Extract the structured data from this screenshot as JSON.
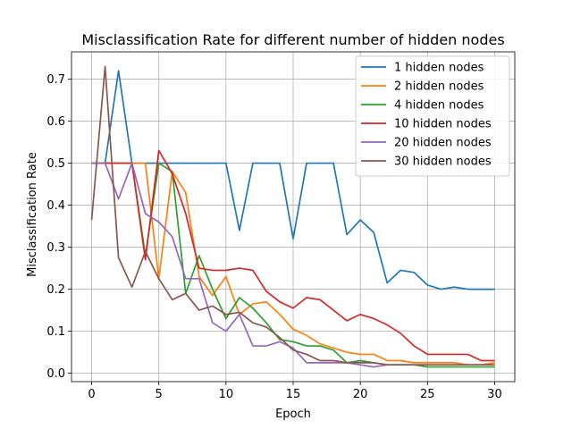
{
  "chart_data": {
    "type": "line",
    "title": "Misclassification Rate for different number of hidden nodes",
    "xlabel": "Epoch",
    "ylabel": "Misclassification Rate",
    "xlim": [
      -1.5,
      31.5
    ],
    "ylim": [
      -0.02,
      0.765
    ],
    "xticks": [
      0,
      5,
      10,
      15,
      20,
      25,
      30
    ],
    "yticks": [
      0.0,
      0.1,
      0.2,
      0.3,
      0.4,
      0.5,
      0.6,
      0.7
    ],
    "ytick_labels": [
      "0.0",
      "0.1",
      "0.2",
      "0.3",
      "0.4",
      "0.5",
      "0.6",
      "0.7"
    ],
    "grid": true,
    "legend_position": "top-right",
    "x": [
      0,
      1,
      2,
      3,
      4,
      5,
      6,
      7,
      8,
      9,
      10,
      11,
      12,
      13,
      14,
      15,
      16,
      17,
      18,
      19,
      20,
      21,
      22,
      23,
      24,
      25,
      26,
      27,
      28,
      29,
      30
    ],
    "series": [
      {
        "name": "1 hidden nodes",
        "color": "#1f77b4",
        "values": [
          0.5,
          0.5,
          0.72,
          0.5,
          0.5,
          0.5,
          0.5,
          0.5,
          0.5,
          0.5,
          0.5,
          0.34,
          0.5,
          0.5,
          0.5,
          0.32,
          0.5,
          0.5,
          0.5,
          0.33,
          0.365,
          0.335,
          0.215,
          0.245,
          0.24,
          0.21,
          0.2,
          0.205,
          0.2,
          0.2,
          0.2
        ]
      },
      {
        "name": "2 hidden nodes",
        "color": "#ff7f0e",
        "values": [
          0.5,
          0.5,
          0.5,
          0.5,
          0.5,
          0.225,
          0.48,
          0.43,
          0.23,
          0.185,
          0.23,
          0.14,
          0.165,
          0.17,
          0.14,
          0.105,
          0.09,
          0.07,
          0.06,
          0.05,
          0.045,
          0.045,
          0.03,
          0.03,
          0.025,
          0.025,
          0.025,
          0.025,
          0.02,
          0.02,
          0.025
        ]
      },
      {
        "name": "4 hidden nodes",
        "color": "#2ca02c",
        "values": [
          0.5,
          0.5,
          0.5,
          0.5,
          0.28,
          0.5,
          0.48,
          0.19,
          0.28,
          0.2,
          0.13,
          0.18,
          0.155,
          0.12,
          0.08,
          0.075,
          0.065,
          0.065,
          0.055,
          0.025,
          0.03,
          0.025,
          0.02,
          0.02,
          0.02,
          0.015,
          0.015,
          0.015,
          0.015,
          0.015,
          0.015
        ]
      },
      {
        "name": "10 hidden nodes",
        "color": "#d62728",
        "values": [
          0.5,
          0.5,
          0.5,
          0.5,
          0.27,
          0.53,
          0.475,
          0.38,
          0.25,
          0.245,
          0.245,
          0.25,
          0.245,
          0.195,
          0.17,
          0.155,
          0.18,
          0.175,
          0.15,
          0.125,
          0.14,
          0.13,
          0.115,
          0.095,
          0.065,
          0.045,
          0.045,
          0.045,
          0.045,
          0.03,
          0.03
        ]
      },
      {
        "name": "20 hidden nodes",
        "color": "#9467bd",
        "values": [
          0.5,
          0.5,
          0.415,
          0.5,
          0.38,
          0.36,
          0.325,
          0.225,
          0.225,
          0.12,
          0.1,
          0.14,
          0.065,
          0.065,
          0.075,
          0.06,
          0.025,
          0.025,
          0.025,
          0.025,
          0.02,
          0.015,
          0.02,
          0.02,
          0.02,
          0.02,
          0.02,
          0.02,
          0.02,
          0.02,
          0.02
        ]
      },
      {
        "name": "30 hidden nodes",
        "color": "#8c564b",
        "values": [
          0.365,
          0.73,
          0.275,
          0.205,
          0.29,
          0.225,
          0.175,
          0.19,
          0.15,
          0.16,
          0.14,
          0.145,
          0.12,
          0.11,
          0.085,
          0.055,
          0.045,
          0.03,
          0.03,
          0.025,
          0.025,
          0.025,
          0.02,
          0.02,
          0.02,
          0.02,
          0.02,
          0.02,
          0.02,
          0.02,
          0.02
        ]
      }
    ]
  }
}
